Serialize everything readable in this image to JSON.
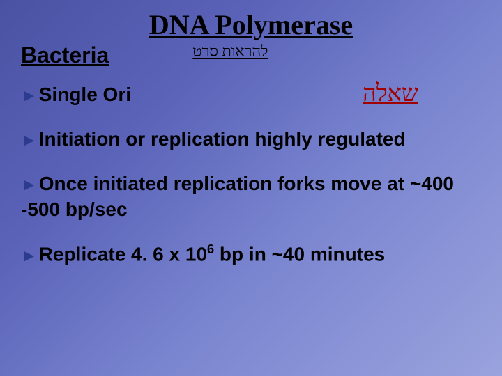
{
  "title": "DNA Polymerase",
  "subtitle": "Bacteria",
  "link_top": "להראות סרט",
  "question": "שאלה",
  "bullets": {
    "b1": "Single Ori",
    "b2": "Initiation or replication highly regulated",
    "b3_a": "Once initiated replication forks move at ~400 -500 bp/sec",
    "b4_a": "Replicate 4. 6 x 10",
    "b4_sup": "6",
    "b4_b": " bp in ~40 minutes"
  },
  "colors": {
    "arrow": "#2c3a8f",
    "question": "#a00000",
    "text": "#000000",
    "bg_start": "#4a52a3",
    "bg_end": "#9aa3dd"
  }
}
